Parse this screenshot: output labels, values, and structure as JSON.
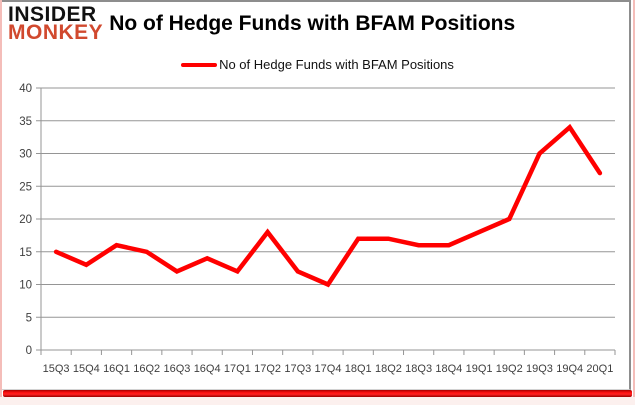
{
  "logo": {
    "line1": "INSIDER",
    "line2": "MONKEY"
  },
  "header": {
    "title": "No of Hedge Funds with BFAM Positions"
  },
  "legend": {
    "label": "No of Hedge Funds with BFAM Positions"
  },
  "colors": {
    "series": "#ff0000",
    "grid": "#959595",
    "axis_text": "#3f3f3f",
    "logo_accent": "#d1492e",
    "frame_pink": "#f4bdb9",
    "bottom_bar_red": "#e60000",
    "card_border_gray": "#8d8d8d"
  },
  "chart_data": {
    "type": "line",
    "title": "No of Hedge Funds with BFAM Positions",
    "categories": [
      "15Q3",
      "15Q4",
      "16Q1",
      "16Q2",
      "16Q3",
      "16Q4",
      "17Q1",
      "17Q2",
      "17Q3",
      "17Q4",
      "18Q1",
      "18Q2",
      "18Q3",
      "18Q4",
      "19Q1",
      "19Q2",
      "19Q3",
      "19Q4",
      "20Q1"
    ],
    "series": [
      {
        "name": "No of Hedge Funds with BFAM Positions",
        "color": "#ff0000",
        "values": [
          15,
          13,
          16,
          15,
          12,
          14,
          12,
          18,
          12,
          10,
          17,
          17,
          16,
          16,
          18,
          20,
          30,
          34,
          27
        ]
      }
    ],
    "xlabel": "",
    "ylabel": "",
    "ylim": [
      0,
      40
    ],
    "yticks": [
      0,
      5,
      10,
      15,
      20,
      25,
      30,
      35,
      40
    ],
    "grid": true,
    "legend_position": "top"
  }
}
